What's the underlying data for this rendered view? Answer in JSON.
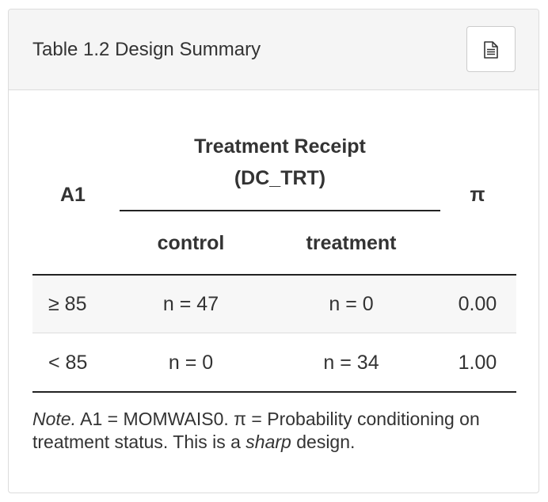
{
  "panel": {
    "title": "Table 1.2 Design Summary",
    "doc_button_icon": "document-icon"
  },
  "table": {
    "row_header": "A1",
    "spanner_line1": "Treatment Receipt",
    "spanner_line2": "(DC_TRT)",
    "columns": [
      "control",
      "treatment"
    ],
    "pi_header": "π",
    "rows": [
      {
        "label": "≥ 85",
        "control": "n = 47",
        "treatment": "n = 0",
        "pi": "0.00"
      },
      {
        "label": "< 85",
        "control": "n = 0",
        "treatment": "n = 34",
        "pi": "1.00"
      }
    ]
  },
  "note": {
    "lead": "Note.",
    "text1": " A1 = MOMWAIS0. π = Probability conditioning on treatment status. This is a ",
    "emph": "sharp",
    "text2": " design."
  }
}
